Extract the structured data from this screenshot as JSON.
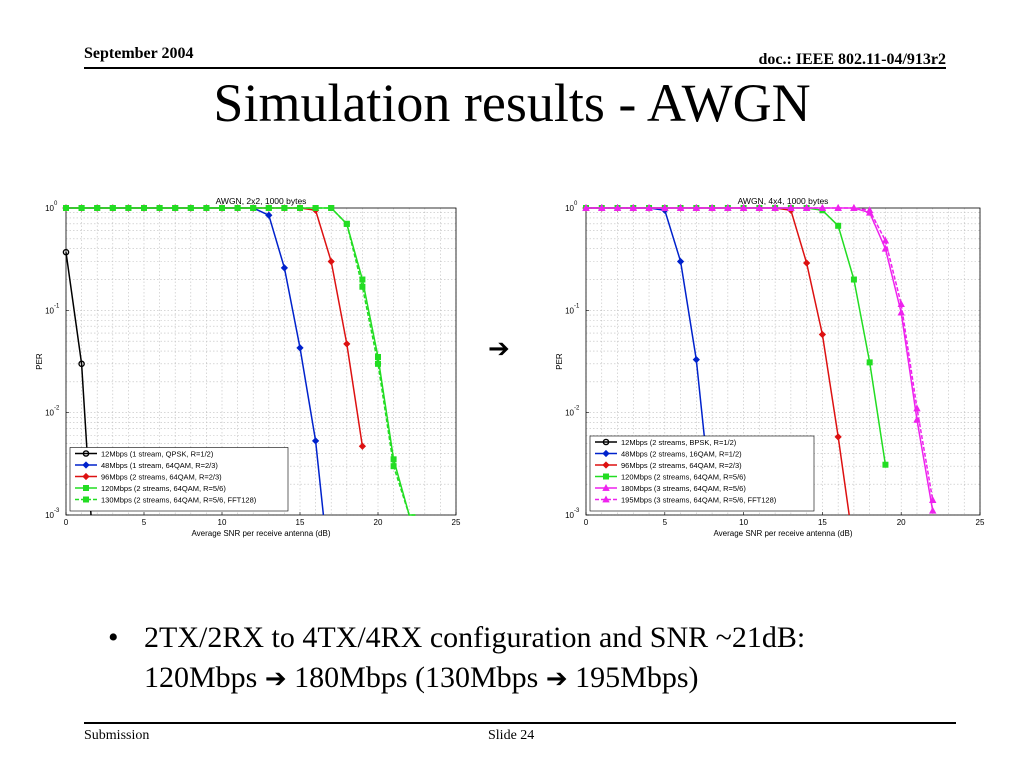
{
  "slide": {
    "header_left": "September 2004",
    "header_right": "doc.: IEEE 802.11-04/913r2",
    "title": "Simulation results - AWGN",
    "arrow_glyph": "➔",
    "bullet_symbol": "•",
    "bullet_line1": "2TX/2RX to 4TX/4RX configuration and SNR ~21dB:",
    "bullet_line2_a": "120Mbps",
    "bullet_line2_b": "180Mbps (130Mbps",
    "bullet_line2_c": "195Mbps)",
    "footer_left": "Submission",
    "footer_center": "Slide 24"
  },
  "chart_data": [
    {
      "type": "line",
      "title": "AWGN, 2x2, 1000 bytes",
      "xlabel": "Average SNR per receive antenna (dB)",
      "ylabel": "PER",
      "xlim": [
        0,
        25
      ],
      "ylim": [
        0.001,
        1
      ],
      "yscale": "log",
      "x_ticks": [
        "0",
        "5",
        "10",
        "15",
        "20",
        "25"
      ],
      "y_ticks": [
        {
          "base": "10",
          "exp": "0",
          "value": 1
        },
        {
          "base": "10",
          "exp": "-1",
          "value": 0.1
        },
        {
          "base": "10",
          "exp": "-2",
          "value": 0.01
        },
        {
          "base": "10",
          "exp": "-3",
          "value": 0.001
        }
      ],
      "grid": true,
      "legend_position": "lower-left",
      "series": [
        {
          "name": "12Mbps (1 stream, QPSK, R=1/2)",
          "color": "#000000",
          "marker": "circle",
          "dashed": false,
          "x": [
            0,
            1,
            1.6
          ],
          "y": [
            0.37,
            0.03,
            0.001
          ]
        },
        {
          "name": "48Mbps (1 stream, 64QAM, R=2/3)",
          "color": "#0022cc",
          "marker": "diamond",
          "dashed": false,
          "x": [
            0,
            1,
            2,
            3,
            4,
            5,
            6,
            7,
            8,
            9,
            10,
            11,
            12,
            13,
            14,
            15,
            16,
            16.5
          ],
          "y": [
            1,
            1,
            1,
            1,
            1,
            1,
            1,
            1,
            1,
            1,
            1,
            1,
            1,
            0.85,
            0.26,
            0.043,
            0.0053,
            0.001
          ]
        },
        {
          "name": "96Mbps (2 streams, 64QAM, R=2/3)",
          "color": "#dd1111",
          "marker": "diamond",
          "dashed": false,
          "x": [
            0,
            1,
            2,
            3,
            4,
            5,
            6,
            7,
            8,
            9,
            10,
            11,
            12,
            13,
            14,
            15,
            16,
            17,
            18,
            19
          ],
          "y": [
            1,
            1,
            1,
            1,
            1,
            1,
            1,
            1,
            1,
            1,
            1,
            1,
            1,
            1,
            1,
            1,
            0.95,
            0.3,
            0.047,
            0.0047
          ]
        },
        {
          "name": "120Mbps (2 streams, 64QAM, R=5/6)",
          "color": "#22dd22",
          "marker": "square",
          "dashed": false,
          "x": [
            0,
            1,
            2,
            3,
            4,
            5,
            6,
            7,
            8,
            9,
            10,
            11,
            12,
            13,
            14,
            15,
            16,
            17,
            18,
            19,
            20,
            21,
            22,
            22.4
          ],
          "y": [
            1,
            1,
            1,
            1,
            1,
            1,
            1,
            1,
            1,
            1,
            1,
            1,
            1,
            1,
            1,
            1,
            1,
            1,
            0.7,
            0.2,
            0.035,
            0.0035,
            0.001,
            0.001
          ]
        },
        {
          "name": "130Mbps (2 streams, 64QAM, R=5/6, FFT128)",
          "color": "#22dd22",
          "marker": "square",
          "dashed": true,
          "x": [
            0,
            1,
            2,
            3,
            4,
            5,
            6,
            7,
            8,
            9,
            10,
            11,
            12,
            13,
            14,
            15,
            16,
            17,
            18,
            19,
            20,
            21,
            22,
            22.4
          ],
          "y": [
            1,
            1,
            1,
            1,
            1,
            1,
            1,
            1,
            1,
            1,
            1,
            1,
            1,
            1,
            1,
            1,
            1,
            1,
            0.7,
            0.17,
            0.03,
            0.003,
            0.001,
            0.001
          ]
        }
      ]
    },
    {
      "type": "line",
      "title": "AWGN, 4x4, 1000 bytes",
      "xlabel": "Average SNR per receive antenna (dB)",
      "ylabel": "PER",
      "xlim": [
        0,
        25
      ],
      "ylim": [
        0.001,
        1
      ],
      "yscale": "log",
      "x_ticks": [
        "0",
        "5",
        "10",
        "15",
        "20",
        "25"
      ],
      "y_ticks": [
        {
          "base": "10",
          "exp": "0",
          "value": 1
        },
        {
          "base": "10",
          "exp": "-1",
          "value": 0.1
        },
        {
          "base": "10",
          "exp": "-2",
          "value": 0.01
        },
        {
          "base": "10",
          "exp": "-3",
          "value": 0.001
        }
      ],
      "grid": true,
      "legend_position": "lower-left",
      "series": [
        {
          "name": "12Mbps (2 streams, BPSK, R=1/2)",
          "color": "#000000",
          "marker": "circle",
          "dashed": false,
          "x": [],
          "y": []
        },
        {
          "name": "48Mbps (2 streams, 16QAM, R=1/2)",
          "color": "#0022cc",
          "marker": "diamond",
          "dashed": false,
          "x": [
            0,
            1,
            2,
            3,
            4,
            5,
            6,
            7,
            7.7
          ],
          "y": [
            1,
            1,
            1,
            1,
            1,
            0.95,
            0.3,
            0.033,
            0.003
          ]
        },
        {
          "name": "96Mbps (2 streams, 64QAM, R=2/3)",
          "color": "#dd1111",
          "marker": "diamond",
          "dashed": false,
          "x": [
            0,
            1,
            2,
            3,
            4,
            5,
            6,
            7,
            8,
            9,
            10,
            11,
            12,
            13,
            14,
            15,
            16,
            16.7
          ],
          "y": [
            1,
            1,
            1,
            1,
            1,
            1,
            1,
            1,
            1,
            1,
            1,
            1,
            1,
            0.95,
            0.29,
            0.058,
            0.0058,
            0.001
          ]
        },
        {
          "name": "120Mbps (2 streams, 64QAM, R=5/6)",
          "color": "#22dd22",
          "marker": "square",
          "dashed": false,
          "x": [
            0,
            1,
            2,
            3,
            4,
            5,
            6,
            7,
            8,
            9,
            10,
            11,
            12,
            13,
            14,
            15,
            16,
            17,
            18,
            19
          ],
          "y": [
            1,
            1,
            1,
            1,
            1,
            1,
            1,
            1,
            1,
            1,
            1,
            1,
            1,
            1,
            1,
            0.95,
            0.67,
            0.2,
            0.031,
            0.0031
          ]
        },
        {
          "name": "180Mbps (3 streams, 64QAM, R=5/6)",
          "color": "#ee22ee",
          "marker": "triangle",
          "dashed": false,
          "x": [
            0,
            1,
            2,
            3,
            4,
            5,
            6,
            7,
            8,
            9,
            10,
            11,
            12,
            13,
            14,
            15,
            16,
            17,
            18,
            19,
            20,
            21,
            22
          ],
          "y": [
            1,
            1,
            1,
            1,
            1,
            1,
            1,
            1,
            1,
            1,
            1,
            1,
            1,
            1,
            1,
            1,
            1,
            1,
            0.9,
            0.4,
            0.095,
            0.0085,
            0.0011
          ]
        },
        {
          "name": "195Mbps (3 streams, 64QAM, R=5/6, FFT128)",
          "color": "#ee22ee",
          "marker": "triangle",
          "dashed": true,
          "x": [
            0,
            1,
            2,
            3,
            4,
            5,
            6,
            7,
            8,
            9,
            10,
            11,
            12,
            13,
            14,
            15,
            16,
            17,
            18,
            19,
            20,
            21,
            22
          ],
          "y": [
            1,
            1,
            1,
            1,
            1,
            1,
            1,
            1,
            1,
            1,
            1,
            1,
            1,
            1,
            1,
            1,
            1,
            1,
            0.95,
            0.48,
            0.115,
            0.011,
            0.0014
          ]
        }
      ]
    }
  ]
}
